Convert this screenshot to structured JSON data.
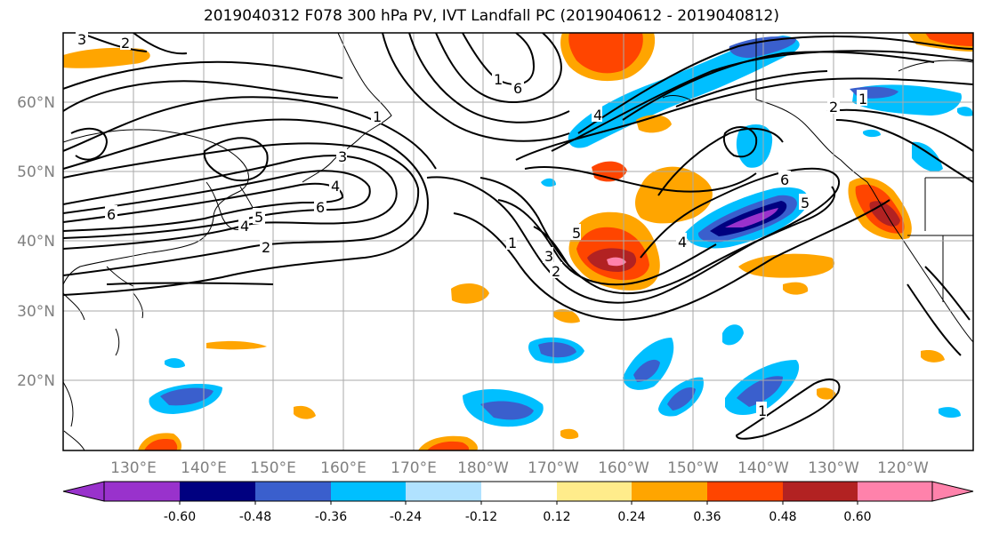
{
  "title": "2019040312 F078 300 hPa PV, IVT Landfall PC (2019040612 - 2019040812)",
  "lat_labels": [
    "60°N",
    "50°N",
    "40°N",
    "30°N",
    "20°N"
  ],
  "lon_labels": [
    "130°E",
    "140°E",
    "150°E",
    "160°E",
    "170°E",
    "180°W",
    "170°W",
    "160°W",
    "150°W",
    "140°W",
    "130°W",
    "120°W"
  ],
  "colorbar": {
    "colors": [
      "#9932cc",
      "#000080",
      "#3a5fcd",
      "#00bfff",
      "#b0e2ff",
      "#ffffff",
      "#ffec8b",
      "#ffa500",
      "#ff4500",
      "#b22222",
      "#ff82ab"
    ],
    "tick_labels": [
      "-0.60",
      "-0.48",
      "-0.36",
      "-0.24",
      "-0.12",
      "0.12",
      "0.24",
      "0.36",
      "0.48",
      "0.60"
    ]
  },
  "contour_labels": [
    "3",
    "2",
    "6",
    "5",
    "4",
    "2",
    "1",
    "3",
    "4",
    "6",
    "1",
    "3",
    "2",
    "5",
    "4",
    "6",
    "5",
    "4",
    "2",
    "1",
    "6",
    "1",
    "1"
  ],
  "colors": {
    "frame": "#000000",
    "grid": "#aaaaaa",
    "axis_text": "#808080",
    "contour": "#000000",
    "coast": "#000000"
  }
}
